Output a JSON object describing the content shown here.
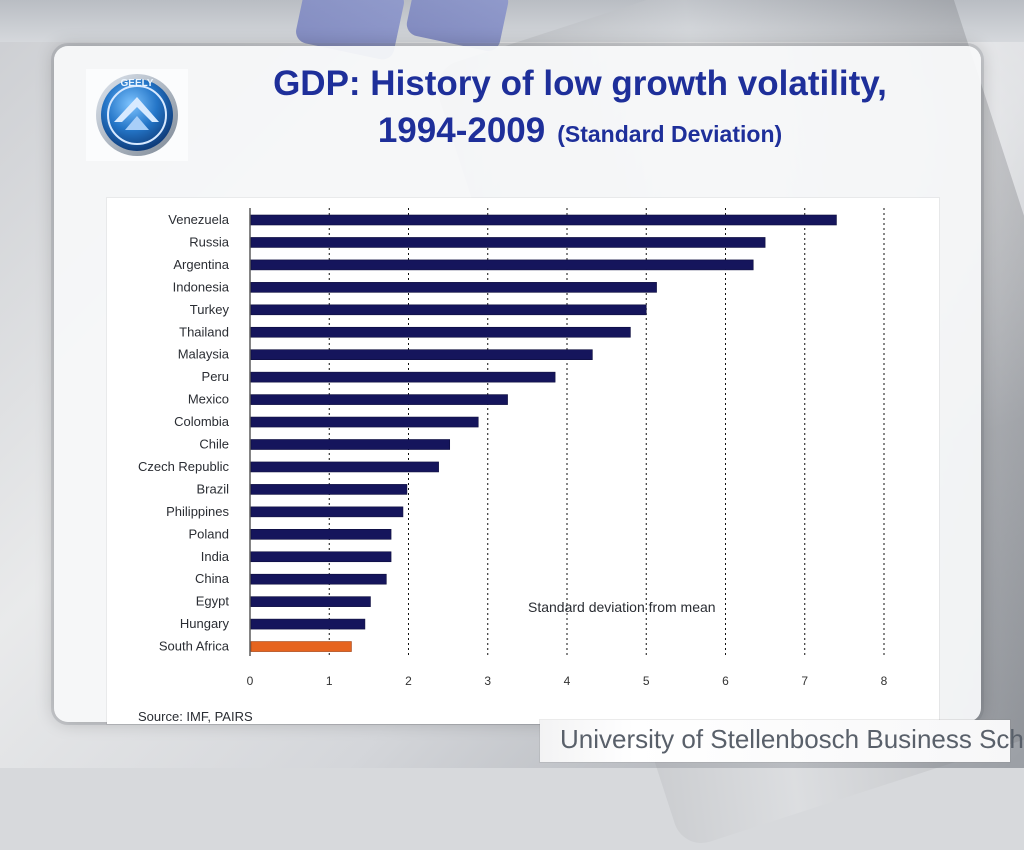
{
  "slide": {
    "title_line1": "GDP: History of low growth volatility,",
    "title_line2_main": "1994-2009",
    "title_line2_sub": "(Standard Deviation)",
    "logo_text": "GEELY",
    "footer": "University of Stellenbosch Business School"
  },
  "colors": {
    "title": "#1E2F9A",
    "bar_default": "#15155C",
    "bar_highlight": "#E6641F",
    "grid": "#111111",
    "footer_text": "#59606A"
  },
  "chart_data": {
    "type": "bar",
    "orientation": "horizontal",
    "categories": [
      "Venezuela",
      "Russia",
      "Argentina",
      "Indonesia",
      "Turkey",
      "Thailand",
      "Malaysia",
      "Peru",
      "Mexico",
      "Colombia",
      "Chile",
      "Czech Republic",
      "Brazil",
      "Philippines",
      "Poland",
      "India",
      "China",
      "Egypt",
      "Hungary",
      "South Africa"
    ],
    "values": [
      7.4,
      6.5,
      6.35,
      5.13,
      5.0,
      4.8,
      4.32,
      3.85,
      3.25,
      2.88,
      2.52,
      2.38,
      1.98,
      1.93,
      1.78,
      1.78,
      1.72,
      1.52,
      1.45,
      1.28
    ],
    "highlight_index": 19,
    "xlim": [
      0,
      8
    ],
    "x_ticks": [
      "0",
      "1",
      "2",
      "3",
      "4",
      "5",
      "6",
      "7",
      "8"
    ],
    "grid": true,
    "annotation": "Standard deviation  from mean",
    "source": "Source: IMF, PAIRS"
  }
}
